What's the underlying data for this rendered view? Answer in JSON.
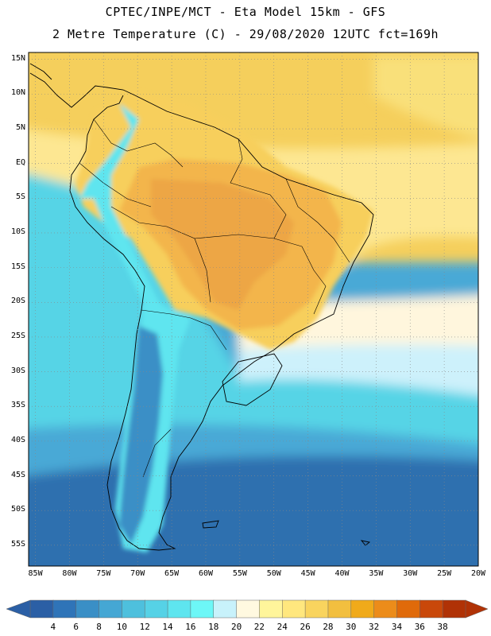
{
  "header": {
    "line1": "CPTEC/INPE/MCT -  Eta Model 15km - GFS",
    "line2": "2 Metre Temperature (C) - 29/08/2020 12UTC fct=169h"
  },
  "map": {
    "lat_range": [
      -58,
      16
    ],
    "lon_range": [
      -86,
      -20
    ],
    "lat_ticks": [
      {
        "value": 15,
        "label": "15N"
      },
      {
        "value": 10,
        "label": "10N"
      },
      {
        "value": 5,
        "label": "5N"
      },
      {
        "value": 0,
        "label": "EQ"
      },
      {
        "value": -5,
        "label": "5S"
      },
      {
        "value": -10,
        "label": "10S"
      },
      {
        "value": -15,
        "label": "15S"
      },
      {
        "value": -20,
        "label": "20S"
      },
      {
        "value": -25,
        "label": "25S"
      },
      {
        "value": -30,
        "label": "30S"
      },
      {
        "value": -35,
        "label": "35S"
      },
      {
        "value": -40,
        "label": "40S"
      },
      {
        "value": -45,
        "label": "45S"
      },
      {
        "value": -50,
        "label": "50S"
      },
      {
        "value": -55,
        "label": "55S"
      }
    ],
    "lon_ticks": [
      {
        "value": -85,
        "label": "85W"
      },
      {
        "value": -80,
        "label": "80W"
      },
      {
        "value": -75,
        "label": "75W"
      },
      {
        "value": -70,
        "label": "70W"
      },
      {
        "value": -65,
        "label": "65W"
      },
      {
        "value": -60,
        "label": "60W"
      },
      {
        "value": -55,
        "label": "55W"
      },
      {
        "value": -50,
        "label": "50W"
      },
      {
        "value": -45,
        "label": "45W"
      },
      {
        "value": -40,
        "label": "40W"
      },
      {
        "value": -35,
        "label": "35W"
      },
      {
        "value": -30,
        "label": "30W"
      },
      {
        "value": -25,
        "label": "25W"
      },
      {
        "value": -20,
        "label": "20W"
      }
    ]
  },
  "colorbar": {
    "labels": [
      "4",
      "6",
      "8",
      "10",
      "12",
      "14",
      "16",
      "18",
      "20",
      "22",
      "24",
      "26",
      "28",
      "30",
      "32",
      "34",
      "36",
      "38"
    ],
    "colors": [
      "#2b5fa5",
      "#2f74b8",
      "#3a8fc6",
      "#45a7d4",
      "#4ec0dd",
      "#56d2e6",
      "#5ee5ef",
      "#6df7f7",
      "#c8f2fb",
      "#fff9e0",
      "#fff59b",
      "#ffe77e",
      "#f9d45e",
      "#f2bf3f",
      "#f0aa1a",
      "#ec8c1a",
      "#e06a0a",
      "#c9480a",
      "#b03206"
    ]
  },
  "fields": {
    "ocean_north": "#f5cf5c",
    "ocean_north_far": "#f9e07a",
    "ocean_equator": "#fde792",
    "ocean_cream": "#fff6dd",
    "ocean_pale": "#cdf1fb",
    "ocean_teal": "#57d4e6",
    "ocean_mid": "#48a9d6",
    "ocean_south": "#2f6faf",
    "land_hot": "#eda645",
    "land_warm": "#f3b54c",
    "land_mild": "#f7cf5c",
    "land_cool": "#5ee5ef",
    "land_cold": "#3a8fc6"
  }
}
